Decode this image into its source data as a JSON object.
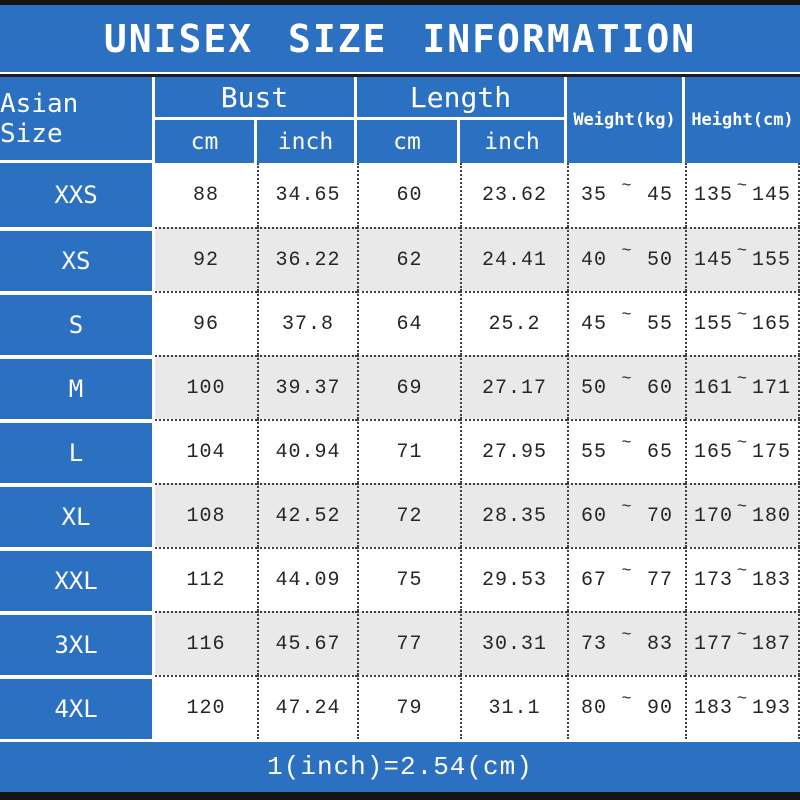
{
  "title": "UNISEX SIZE INFORMATION",
  "header": {
    "size_col": "Asian Size",
    "bust": "Bust",
    "length": "Length",
    "cm": "cm",
    "inch": "inch",
    "weight": "Weight(kg)",
    "height": "Height(cm)"
  },
  "tilde": "~",
  "rows": [
    {
      "size": "XXS",
      "bust_cm": "88",
      "bust_inch": "34.65",
      "len_cm": "60",
      "len_inch": "23.62",
      "w_min": "35",
      "w_max": "45",
      "h_min": "135",
      "h_max": "145"
    },
    {
      "size": "XS",
      "bust_cm": "92",
      "bust_inch": "36.22",
      "len_cm": "62",
      "len_inch": "24.41",
      "w_min": "40",
      "w_max": "50",
      "h_min": "145",
      "h_max": "155"
    },
    {
      "size": "S",
      "bust_cm": "96",
      "bust_inch": "37.8",
      "len_cm": "64",
      "len_inch": "25.2",
      "w_min": "45",
      "w_max": "55",
      "h_min": "155",
      "h_max": "165"
    },
    {
      "size": "M",
      "bust_cm": "100",
      "bust_inch": "39.37",
      "len_cm": "69",
      "len_inch": "27.17",
      "w_min": "50",
      "w_max": "60",
      "h_min": "161",
      "h_max": "171"
    },
    {
      "size": "L",
      "bust_cm": "104",
      "bust_inch": "40.94",
      "len_cm": "71",
      "len_inch": "27.95",
      "w_min": "55",
      "w_max": "65",
      "h_min": "165",
      "h_max": "175"
    },
    {
      "size": "XL",
      "bust_cm": "108",
      "bust_inch": "42.52",
      "len_cm": "72",
      "len_inch": "28.35",
      "w_min": "60",
      "w_max": "70",
      "h_min": "170",
      "h_max": "180"
    },
    {
      "size": "XXL",
      "bust_cm": "112",
      "bust_inch": "44.09",
      "len_cm": "75",
      "len_inch": "29.53",
      "w_min": "67",
      "w_max": "77",
      "h_min": "173",
      "h_max": "183"
    },
    {
      "size": "3XL",
      "bust_cm": "116",
      "bust_inch": "45.67",
      "len_cm": "77",
      "len_inch": "30.31",
      "w_min": "73",
      "w_max": "83",
      "h_min": "177",
      "h_max": "187"
    },
    {
      "size": "4XL",
      "bust_cm": "120",
      "bust_inch": "47.24",
      "len_cm": "79",
      "len_inch": "31.1",
      "w_min": "80",
      "w_max": "90",
      "h_min": "183",
      "h_max": "193"
    }
  ],
  "footer": "1(inch)=2.54(cm)",
  "colors": {
    "blue": "#2c70c2",
    "bar_black": "#141414",
    "row_alt": "#e9e9e9",
    "text_dark": "#262626",
    "border_white": "#ffffff",
    "dotted_border": "#3f3f3f"
  },
  "chart_data": {
    "type": "table",
    "title": "UNISEX SIZE INFORMATION",
    "columns": [
      "Asian Size",
      "Bust cm",
      "Bust inch",
      "Length cm",
      "Length inch",
      "Weight(kg)",
      "Height(cm)"
    ],
    "rows": [
      [
        "XXS",
        88,
        34.65,
        60,
        23.62,
        "35~45",
        "135~145"
      ],
      [
        "XS",
        92,
        36.22,
        62,
        24.41,
        "40~50",
        "145~155"
      ],
      [
        "S",
        96,
        37.8,
        64,
        25.2,
        "45~55",
        "155~165"
      ],
      [
        "M",
        100,
        39.37,
        69,
        27.17,
        "50~60",
        "161~171"
      ],
      [
        "L",
        104,
        40.94,
        71,
        27.95,
        "55~65",
        "165~175"
      ],
      [
        "XL",
        108,
        42.52,
        72,
        28.35,
        "60~70",
        "170~180"
      ],
      [
        "XXL",
        112,
        44.09,
        75,
        29.53,
        "67~77",
        "173~183"
      ],
      [
        "3XL",
        116,
        45.67,
        77,
        30.31,
        "73~83",
        "177~187"
      ],
      [
        "4XL",
        120,
        47.24,
        79,
        31.1,
        "80~90",
        "183~193"
      ]
    ],
    "note": "1(inch)=2.54(cm)"
  }
}
